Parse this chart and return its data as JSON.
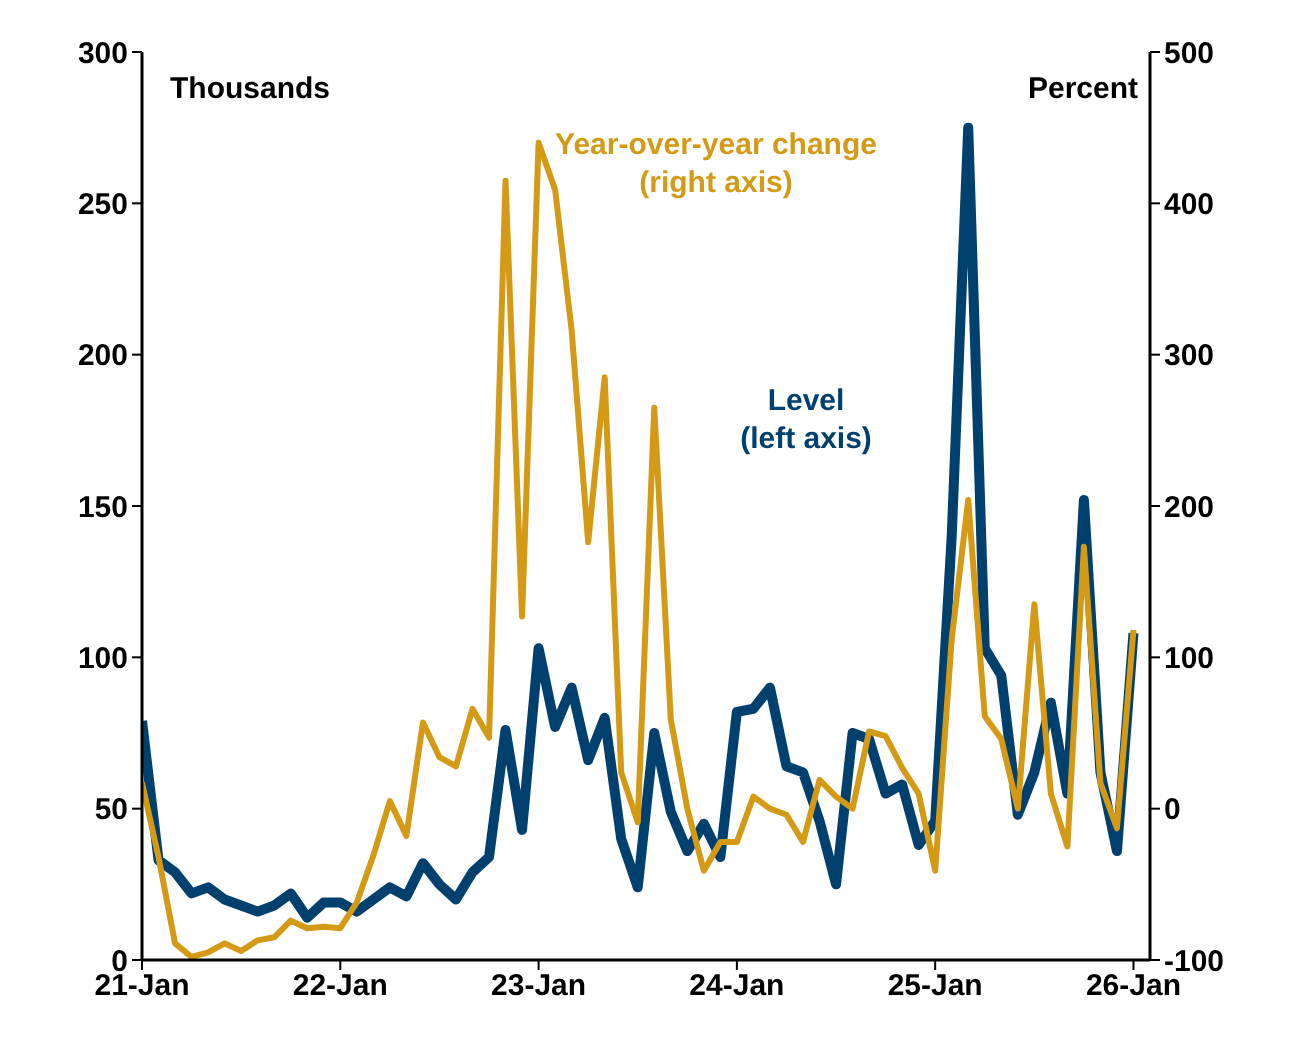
{
  "chart_data": {
    "type": "line",
    "ylabel": "Thousands",
    "y2label": "Percent",
    "x": [
      "2021-01",
      "2021-02",
      "2021-03",
      "2021-04",
      "2021-05",
      "2021-06",
      "2021-07",
      "2021-08",
      "2021-09",
      "2021-10",
      "2021-11",
      "2021-12",
      "2022-01",
      "2022-02",
      "2022-03",
      "2022-04",
      "2022-05",
      "2022-06",
      "2022-07",
      "2022-08",
      "2022-09",
      "2022-10",
      "2022-11",
      "2022-12",
      "2023-01",
      "2023-02",
      "2023-03",
      "2023-04",
      "2023-05",
      "2023-06",
      "2023-07",
      "2023-08",
      "2023-09",
      "2023-10",
      "2023-11",
      "2023-12",
      "2024-01",
      "2024-02",
      "2024-03",
      "2024-04",
      "2024-05",
      "2024-06",
      "2024-07",
      "2024-08",
      "2024-09",
      "2024-10",
      "2024-11",
      "2024-12",
      "2025-01",
      "2025-02",
      "2025-03",
      "2025-04",
      "2025-05",
      "2025-06",
      "2025-07",
      "2025-08",
      "2025-09",
      "2025-10",
      "2025-11",
      "2025-12",
      "2026-01"
    ],
    "series": [
      {
        "name": "Level (left axis)",
        "color": "#00406e",
        "values": [
          79,
          33,
          29,
          22,
          24,
          20,
          18,
          16,
          18,
          22,
          14,
          19,
          19,
          16,
          20,
          24,
          21,
          32,
          25,
          20,
          29,
          34,
          76,
          43,
          103,
          77,
          90,
          66,
          80,
          40,
          24,
          75,
          49,
          36,
          45,
          34,
          82,
          83,
          90,
          64,
          62,
          46,
          25,
          75,
          73,
          55,
          58,
          38,
          46,
          140,
          275,
          103,
          94,
          48,
          62,
          85,
          55,
          152,
          62,
          36,
          108
        ]
      },
      {
        "name": "Year-over-year change (right axis)",
        "color": "#d49a15",
        "axis": "y2",
        "values": [
          17,
          -32,
          -89,
          -98,
          -95,
          -89,
          -94,
          -87,
          -85,
          -74,
          -79,
          -78,
          -79,
          -62,
          -31,
          5,
          -18,
          57,
          34,
          28,
          66,
          47,
          415,
          127,
          440,
          409,
          316,
          176,
          285,
          24,
          -9,
          265,
          59,
          0,
          -41,
          -22,
          -22,
          8,
          0,
          -4,
          -22,
          19,
          8,
          0,
          51,
          48,
          27,
          10,
          -41,
          112,
          204,
          61,
          46,
          0,
          135,
          10,
          -25,
          173,
          17,
          -13,
          118
        ]
      }
    ],
    "xlim": [
      "2021-01",
      "2026-02"
    ],
    "xticks": [
      {
        "value": "2021-01",
        "label": "21-Jan"
      },
      {
        "value": "2022-01",
        "label": "22-Jan"
      },
      {
        "value": "2023-01",
        "label": "23-Jan"
      },
      {
        "value": "2024-01",
        "label": "24-Jan"
      },
      {
        "value": "2025-01",
        "label": "25-Jan"
      },
      {
        "value": "2026-01",
        "label": "26-Jan"
      }
    ],
    "ylim": [
      0,
      300
    ],
    "yticks": [
      0,
      50,
      100,
      150,
      200,
      250,
      300
    ],
    "y2lim": [
      -100,
      500
    ],
    "y2ticks": [
      -100,
      0,
      100,
      200,
      300,
      400,
      500
    ],
    "grid": false,
    "legend": false,
    "marker": "none",
    "line_style": "solid"
  }
}
